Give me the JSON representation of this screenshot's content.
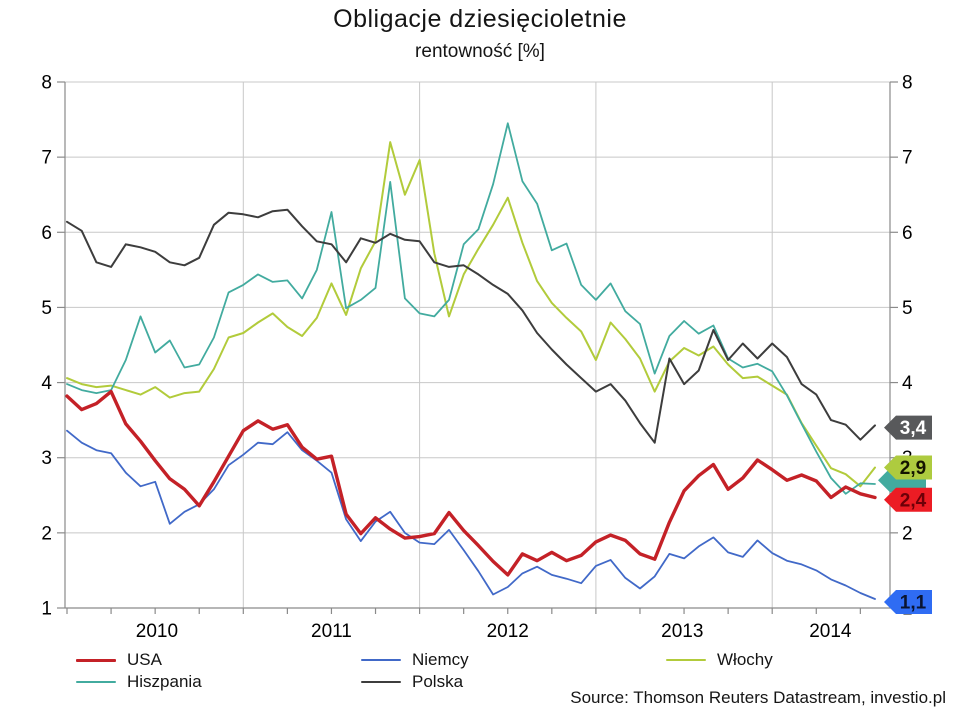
{
  "page": {
    "title": "Obligacje dziesięcioletnie",
    "subtitle": "rentowność [%]",
    "source": "Source: Thomson Reuters Datastream, investio.pl"
  },
  "legend": {
    "columns": [
      [
        "usa",
        "hiszpania"
      ],
      [
        "niemcy",
        "polska"
      ],
      [
        "wlochy"
      ]
    ]
  },
  "chart_data": {
    "type": "line",
    "title": "Obligacje dziesięcioletnie",
    "subtitle": "rentowność [%]",
    "grid": true,
    "legend_position": "bottom",
    "y_axis": {
      "min": 1,
      "max": 8,
      "ticks": [
        8,
        7,
        6,
        5,
        4,
        3,
        2,
        1
      ],
      "sides": "both"
    },
    "x_axis": {
      "start_year": 2010.0,
      "end_year": 2014.667,
      "minor_tick_step_years": 0.25,
      "year_gridlines": [
        2011,
        2012,
        2013,
        2014
      ],
      "labels": [
        {
          "text": "2010",
          "x_frac": 2010.51
        },
        {
          "text": "2011",
          "x_frac": 2011.5
        },
        {
          "text": "2012",
          "x_frac": 2012.5
        },
        {
          "text": "2013",
          "x_frac": 2013.49
        },
        {
          "text": "2014",
          "x_frac": 2014.33
        }
      ]
    },
    "series_start": "2010-01",
    "series_interval": "monthly",
    "series": [
      {
        "id": "wlochy",
        "label": "Włochy",
        "color": "#b2cb3b",
        "line_width": 2,
        "values": [
          4.06,
          3.98,
          3.94,
          3.96,
          3.9,
          3.84,
          3.94,
          3.8,
          3.86,
          3.88,
          4.18,
          4.6,
          4.66,
          4.8,
          4.92,
          4.74,
          4.62,
          4.86,
          5.32,
          4.9,
          5.52,
          5.88,
          7.2,
          6.5,
          6.96,
          5.72,
          4.88,
          5.44,
          5.78,
          6.1,
          6.46,
          5.86,
          5.35,
          5.06,
          4.86,
          4.68,
          4.3,
          4.8,
          4.58,
          4.32,
          3.88,
          4.28,
          4.46,
          4.36,
          4.48,
          4.24,
          4.06,
          4.08,
          3.96,
          3.84,
          3.46,
          3.16,
          2.86,
          2.78,
          2.62,
          2.87
        ]
      },
      {
        "id": "hiszpania",
        "label": "Hiszpania",
        "color": "#42ab9f",
        "line_width": 1.8,
        "values": [
          3.98,
          3.9,
          3.86,
          3.9,
          4.3,
          4.88,
          4.4,
          4.56,
          4.2,
          4.24,
          4.6,
          5.2,
          5.3,
          5.44,
          5.34,
          5.36,
          5.12,
          5.5,
          6.27,
          4.99,
          5.1,
          5.26,
          6.67,
          5.12,
          4.92,
          4.88,
          5.1,
          5.84,
          6.04,
          6.64,
          7.45,
          6.68,
          6.38,
          5.76,
          5.85,
          5.3,
          5.1,
          5.32,
          4.95,
          4.78,
          4.12,
          4.62,
          4.82,
          4.65,
          4.76,
          4.32,
          4.2,
          4.25,
          4.15,
          3.83,
          3.45,
          3.08,
          2.73,
          2.52,
          2.66,
          2.65
        ]
      },
      {
        "id": "polska",
        "label": "Polska",
        "color": "#3d3d3d",
        "line_width": 2,
        "values": [
          6.14,
          6.02,
          5.6,
          5.54,
          5.84,
          5.8,
          5.74,
          5.6,
          5.56,
          5.66,
          6.1,
          6.26,
          6.24,
          6.2,
          6.28,
          6.3,
          6.08,
          5.88,
          5.84,
          5.6,
          5.92,
          5.86,
          5.98,
          5.9,
          5.88,
          5.6,
          5.54,
          5.56,
          5.44,
          5.3,
          5.18,
          4.96,
          4.66,
          4.44,
          4.24,
          4.06,
          3.88,
          3.98,
          3.76,
          3.46,
          3.2,
          4.32,
          3.98,
          4.16,
          4.7,
          4.3,
          4.52,
          4.32,
          4.52,
          4.34,
          3.98,
          3.84,
          3.5,
          3.44,
          3.24,
          3.43
        ]
      },
      {
        "id": "niemcy",
        "label": "Niemcy",
        "color": "#4169c8",
        "line_width": 1.8,
        "values": [
          3.36,
          3.2,
          3.1,
          3.06,
          2.8,
          2.62,
          2.68,
          2.12,
          2.28,
          2.38,
          2.58,
          2.9,
          3.04,
          3.2,
          3.18,
          3.34,
          3.1,
          2.96,
          2.8,
          2.18,
          1.89,
          2.15,
          2.28,
          2.0,
          1.87,
          1.85,
          2.04,
          1.77,
          1.49,
          1.18,
          1.28,
          1.46,
          1.55,
          1.44,
          1.39,
          1.33,
          1.56,
          1.64,
          1.4,
          1.26,
          1.42,
          1.72,
          1.66,
          1.82,
          1.94,
          1.74,
          1.68,
          1.9,
          1.73,
          1.63,
          1.58,
          1.5,
          1.38,
          1.3,
          1.2,
          1.12
        ]
      },
      {
        "id": "usa",
        "label": "USA",
        "color": "#c42127",
        "line_width": 3.4,
        "values": [
          3.82,
          3.64,
          3.72,
          3.88,
          3.45,
          3.22,
          2.96,
          2.72,
          2.58,
          2.36,
          2.68,
          3.02,
          3.36,
          3.49,
          3.38,
          3.44,
          3.14,
          2.98,
          3.02,
          2.25,
          1.99,
          2.2,
          2.05,
          1.93,
          1.95,
          1.99,
          2.27,
          2.03,
          1.83,
          1.62,
          1.44,
          1.72,
          1.63,
          1.74,
          1.63,
          1.7,
          1.88,
          1.97,
          1.9,
          1.72,
          1.65,
          2.14,
          2.56,
          2.76,
          2.91,
          2.58,
          2.73,
          2.97,
          2.84,
          2.7,
          2.77,
          2.69,
          2.47,
          2.61,
          2.52,
          2.47
        ]
      }
    ],
    "end_flags": [
      {
        "series": "hiszpania",
        "text": "",
        "value": 2.7,
        "fill": "#42ab9f",
        "text_color": "#000000",
        "x_offset": -6
      },
      {
        "series": "polska",
        "text": "3,4",
        "value": 3.4,
        "fill": "#58595b",
        "text_color": "#ffffff"
      },
      {
        "series": "wlochy",
        "text": "2,9",
        "value": 2.87,
        "fill": "#aecb3f",
        "text_color": "#141400"
      },
      {
        "series": "usa",
        "text": "2,4",
        "value": 2.44,
        "fill": "#ec1c24",
        "text_color": "#6d0008"
      },
      {
        "series": "niemcy",
        "text": "1,1",
        "value": 1.08,
        "fill": "#2f6cf3",
        "text_color": "#0a1430"
      }
    ]
  }
}
